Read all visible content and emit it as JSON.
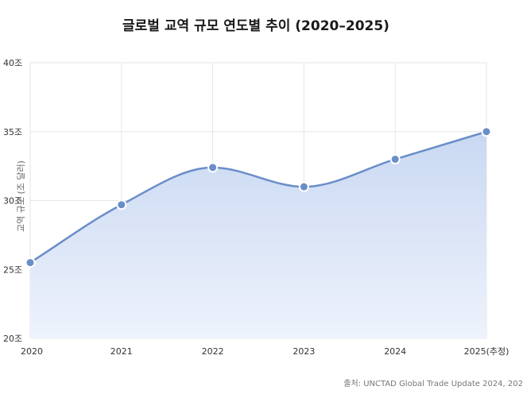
{
  "chart_data": {
    "type": "area",
    "title": "글로벌 교역 규모 연도별 추이 (2020–2025)",
    "ylabel": "교역 규모 (조 달러)",
    "xlabel": "",
    "categories": [
      "2020",
      "2021",
      "2022",
      "2023",
      "2024",
      "2025(추정)"
    ],
    "series": [
      {
        "values": [
          25.5,
          29.7,
          32.4,
          31.0,
          33.0,
          35.0
        ]
      }
    ],
    "ylim": [
      20,
      40
    ],
    "yticks": [
      20,
      25,
      30,
      35,
      40
    ],
    "ytick_labels": [
      "20조",
      "25조",
      "30조",
      "35조",
      "40조"
    ],
    "grid": true,
    "legend": "none",
    "colors": {
      "line": "#6a8ec9",
      "fill_top": "#c9d8f2",
      "fill_bottom": "#eef3fc",
      "marker": "#6a8ec9",
      "marker_stroke": "#ffffff"
    },
    "source": "출처: UNCTAD Global Trade Update 2024, 202"
  }
}
